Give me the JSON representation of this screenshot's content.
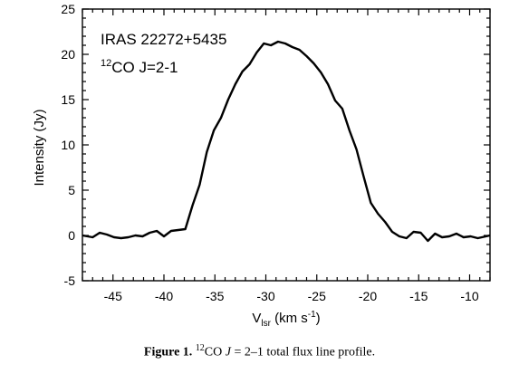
{
  "chart_data": {
    "type": "line",
    "xlabel": "V",
    "xlabel_sub": "lsr",
    "xlabel_unit": " (km s",
    "xlabel_unit_sup": "-1",
    "xlabel_close": ")",
    "ylabel": "Intensity (Jy)",
    "xlim": [
      -48,
      -8
    ],
    "ylim": [
      -5,
      25
    ],
    "xticks": [
      -45,
      -40,
      -35,
      -30,
      -25,
      -20,
      -15,
      -10
    ],
    "yticks": [
      -5,
      0,
      5,
      10,
      15,
      20,
      25
    ],
    "x_minor_step": 1,
    "y_minor_step": 1,
    "annotation_line1": "IRAS 22272+5435",
    "annotation_line2_sup": "12",
    "annotation_line2_text": "CO J=2-1",
    "series": [
      {
        "x": [
          -48.0,
          -47.0,
          -46.3,
          -45.6,
          -44.9,
          -44.2,
          -43.5,
          -42.8,
          -42.1,
          -41.4,
          -40.7,
          -40.0,
          -39.3,
          -38.6,
          -37.9,
          -37.2,
          -36.5,
          -35.8,
          -35.1,
          -34.4,
          -33.7,
          -33.0,
          -32.3,
          -31.6,
          -30.9,
          -30.2,
          -29.5,
          -28.8,
          -28.1,
          -27.4,
          -26.7,
          -26.0,
          -25.3,
          -24.6,
          -23.9,
          -23.2,
          -22.5,
          -21.8,
          -21.1,
          -20.4,
          -19.7,
          -19.0,
          -18.3,
          -17.6,
          -16.9,
          -16.2,
          -15.5,
          -14.8,
          -14.1,
          -13.4,
          -12.7,
          -12.0,
          -11.3,
          -10.6,
          -9.9,
          -9.2,
          -8.0
        ],
        "y": [
          0.0,
          -0.2,
          0.3,
          0.1,
          -0.2,
          -0.3,
          -0.2,
          0.0,
          -0.1,
          0.3,
          0.5,
          -0.1,
          0.5,
          0.6,
          0.7,
          3.3,
          5.6,
          9.2,
          11.6,
          13.0,
          15.0,
          16.7,
          18.1,
          18.9,
          20.2,
          21.2,
          21.0,
          21.4,
          21.2,
          20.8,
          20.5,
          19.8,
          19.0,
          18.0,
          16.7,
          14.9,
          14.0,
          11.6,
          9.5,
          6.5,
          3.6,
          2.4,
          1.5,
          0.4,
          -0.1,
          -0.3,
          0.4,
          0.3,
          -0.6,
          0.2,
          -0.2,
          -0.1,
          0.2,
          -0.2,
          -0.1,
          -0.3,
          0.0
        ]
      }
    ]
  },
  "caption": {
    "label": "Figure 1.",
    "sup": "12",
    "text_a": "CO ",
    "text_j": "J",
    "text_b": " = 2–1 total flux line profile."
  }
}
